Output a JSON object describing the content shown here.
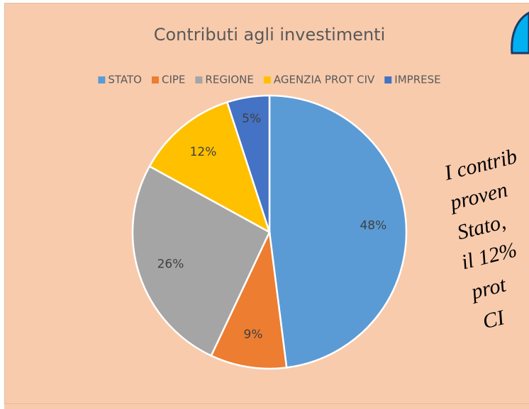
{
  "chart_data": {
    "type": "pie",
    "title": "Contributi agli investimenti",
    "categories": [
      "STATO",
      "CIPE",
      "REGIONE",
      "AGENZIA PROT CIV",
      "IMPRESE"
    ],
    "values": [
      48,
      9,
      26,
      12,
      5
    ],
    "value_labels": [
      "48%",
      "9%",
      "26%",
      "12%",
      "5%"
    ],
    "colors": [
      "#5b9bd5",
      "#ed7d31",
      "#a5a5a5",
      "#ffc000",
      "#4472c4"
    ],
    "legend": "top"
  },
  "side_text": [
    "I contrib",
    "proven",
    "Stato,",
    "il 12%",
    "prot",
    "CI"
  ]
}
